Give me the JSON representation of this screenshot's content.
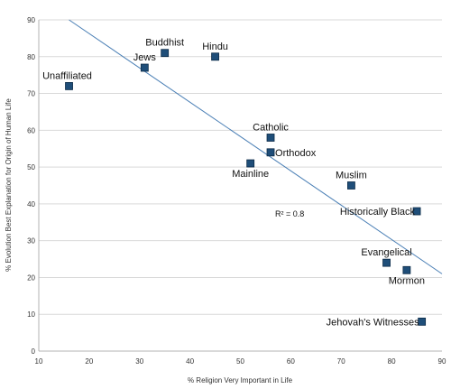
{
  "chart_data": {
    "type": "scatter",
    "title": "",
    "xlabel": "% Religion Very Important in Life",
    "ylabel": "% Evolution Best Explanation for Origin of Human Life",
    "xlim": [
      10,
      90
    ],
    "ylim": [
      0,
      90
    ],
    "x_ticks": [
      10,
      20,
      30,
      40,
      50,
      60,
      70,
      80,
      90
    ],
    "y_ticks": [
      0,
      10,
      20,
      30,
      40,
      50,
      60,
      70,
      80,
      90
    ],
    "grid": {
      "horizontal": true,
      "vertical": false
    },
    "legend": "none",
    "marker_color": "#1f4e79",
    "trendline_color": "#4a7fb5",
    "points": [
      {
        "label": "Unaffiliated",
        "x": 16,
        "y": 72
      },
      {
        "label": "Jews",
        "x": 31,
        "y": 77
      },
      {
        "label": "Buddhist",
        "x": 35,
        "y": 81
      },
      {
        "label": "Hindu",
        "x": 45,
        "y": 80
      },
      {
        "label": "Catholic",
        "x": 56,
        "y": 58
      },
      {
        "label": "Orthodox",
        "x": 56,
        "y": 54
      },
      {
        "label": "Mainline",
        "x": 52,
        "y": 51
      },
      {
        "label": "Muslim",
        "x": 72,
        "y": 45
      },
      {
        "label": "Historically Black",
        "x": 85,
        "y": 38
      },
      {
        "label": "Evangelical",
        "x": 79,
        "y": 24
      },
      {
        "label": "Mormon",
        "x": 83,
        "y": 22
      },
      {
        "label": "Jehovah's Witnesses",
        "x": 86,
        "y": 8
      }
    ],
    "trendline": {
      "x": [
        16,
        90
      ],
      "y": [
        90,
        21
      ]
    },
    "annotation": "R² = 0.8"
  }
}
